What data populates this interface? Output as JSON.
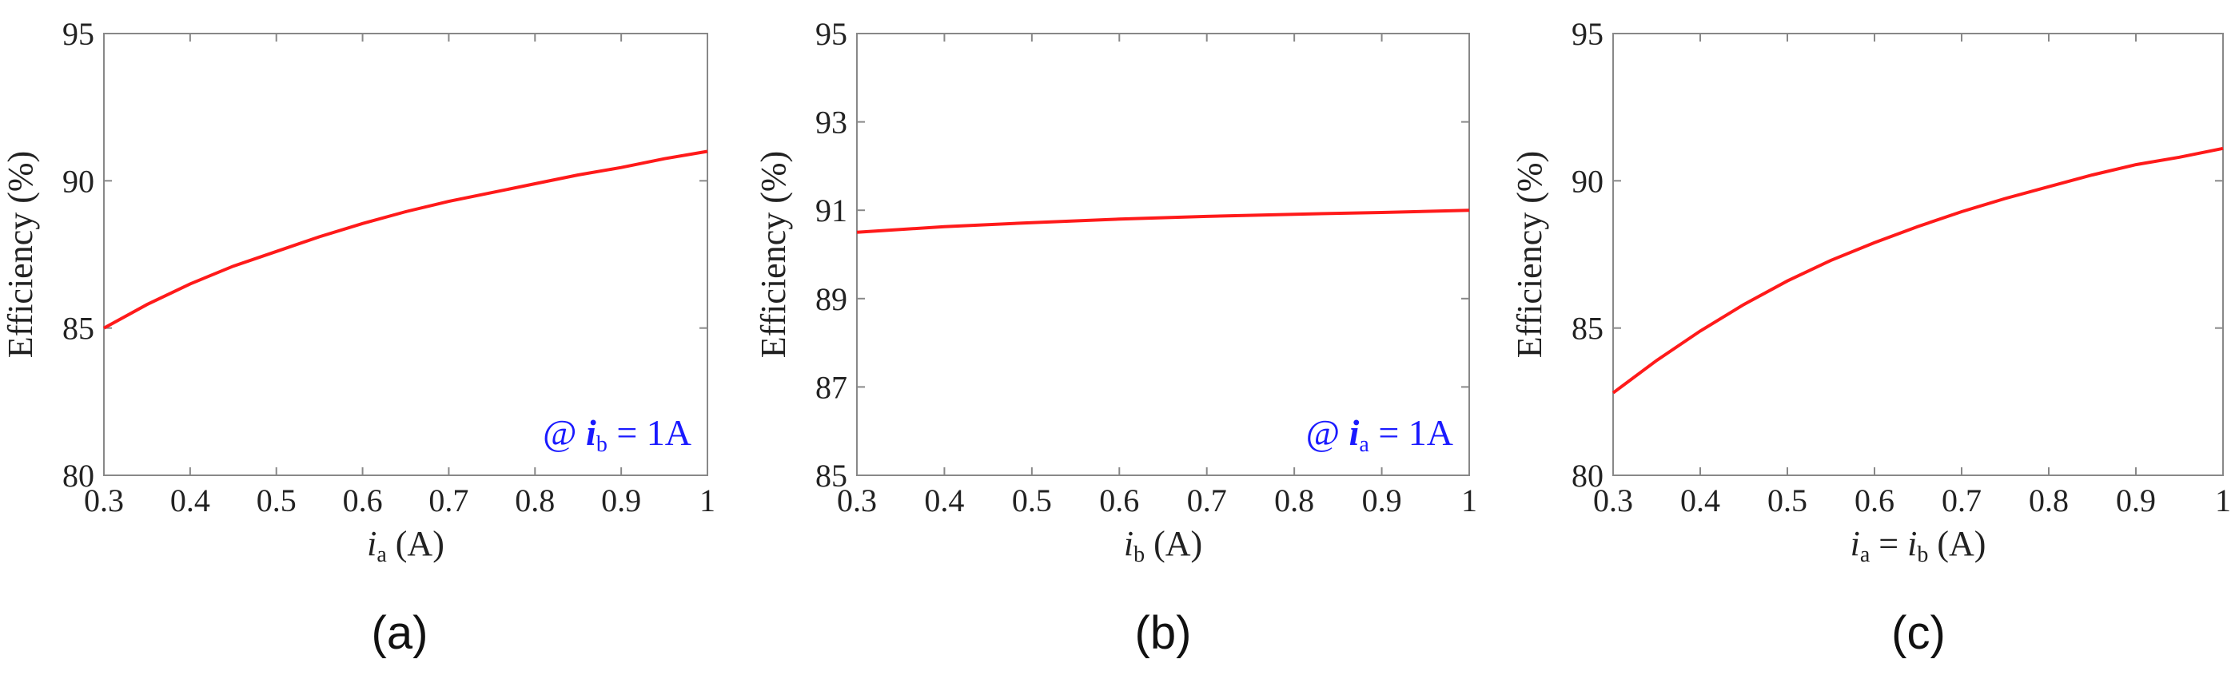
{
  "chart_data": [
    {
      "type": "line",
      "panel_label": "(a)",
      "xlabel_main": "i",
      "xlabel_sub": "a",
      "xlabel_unit": " (A)",
      "ylabel": "Efficiency (%)",
      "xlim": [
        0.3,
        1
      ],
      "ylim": [
        80,
        95
      ],
      "xticks": [
        "0.3",
        "0.4",
        "0.5",
        "0.6",
        "0.7",
        "0.8",
        "0.9",
        "1"
      ],
      "yticks": [
        "80",
        "85",
        "90",
        "95"
      ],
      "annotation": {
        "prefix": "@ ",
        "var": "i",
        "sub": "b",
        "suffix": " = 1A"
      },
      "series": [
        {
          "x": [
            0.3,
            0.35,
            0.4,
            0.45,
            0.5,
            0.55,
            0.6,
            0.65,
            0.7,
            0.75,
            0.8,
            0.85,
            0.9,
            0.95,
            1.0
          ],
          "y": [
            85.0,
            85.8,
            86.5,
            87.1,
            87.6,
            88.1,
            88.55,
            88.95,
            89.3,
            89.6,
            89.9,
            90.2,
            90.45,
            90.75,
            91.0
          ]
        }
      ]
    },
    {
      "type": "line",
      "panel_label": "(b)",
      "xlabel_main": "i",
      "xlabel_sub": "b",
      "xlabel_unit": " (A)",
      "ylabel": "Efficiency (%)",
      "xlim": [
        0.3,
        1
      ],
      "ylim": [
        85,
        95
      ],
      "xticks": [
        "0.3",
        "0.4",
        "0.5",
        "0.6",
        "0.7",
        "0.8",
        "0.9",
        "1"
      ],
      "yticks": [
        "85",
        "87",
        "89",
        "91",
        "93",
        "95"
      ],
      "annotation": {
        "prefix": "@ ",
        "var": "i",
        "sub": "a",
        "suffix": " = 1A"
      },
      "series": [
        {
          "x": [
            0.3,
            0.4,
            0.5,
            0.6,
            0.7,
            0.8,
            0.9,
            1.0
          ],
          "y": [
            90.5,
            90.63,
            90.72,
            90.8,
            90.86,
            90.91,
            90.95,
            91.0
          ]
        }
      ]
    },
    {
      "type": "line",
      "panel_label": "(c)",
      "xlabel_main": "i",
      "xlabel_sub": "a",
      "xlabel_unit": " = ",
      "xlabel_main2": "i",
      "xlabel_sub2": "b",
      "xlabel_unit2": " (A)",
      "ylabel": "Efficiency (%)",
      "xlim": [
        0.3,
        1
      ],
      "ylim": [
        80,
        95
      ],
      "xticks": [
        "0.3",
        "0.4",
        "0.5",
        "0.6",
        "0.7",
        "0.8",
        "0.9",
        "1"
      ],
      "yticks": [
        "80",
        "85",
        "90",
        "95"
      ],
      "series": [
        {
          "x": [
            0.3,
            0.35,
            0.4,
            0.45,
            0.5,
            0.55,
            0.6,
            0.65,
            0.7,
            0.75,
            0.8,
            0.85,
            0.9,
            0.95,
            1.0
          ],
          "y": [
            82.8,
            83.9,
            84.9,
            85.8,
            86.6,
            87.3,
            87.9,
            88.45,
            88.95,
            89.4,
            89.8,
            90.2,
            90.55,
            90.8,
            91.1
          ]
        }
      ]
    }
  ]
}
